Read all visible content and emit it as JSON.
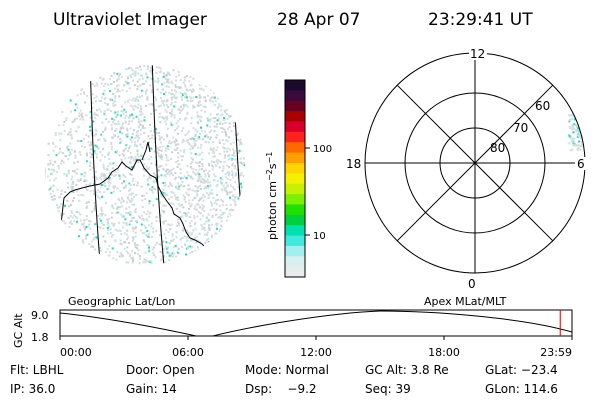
{
  "header": {
    "instrument": "Ultraviolet Imager",
    "date": "28 Apr 07",
    "time": "23:29:41 UT"
  },
  "colorbar": {
    "label_base": "photon cm",
    "label_exp1": "−2",
    "label_mid": "s",
    "label_exp2": "−1",
    "ticks": [
      "100",
      "10"
    ],
    "colors": [
      "#1a0a2e",
      "#3a0a3e",
      "#6a0020",
      "#a80000",
      "#d8002a",
      "#ff2020",
      "#ff6a00",
      "#ffa000",
      "#ffd400",
      "#f4f000",
      "#c8f000",
      "#7cf000",
      "#20e000",
      "#00d040",
      "#00e0b0",
      "#40e8e0",
      "#a0f0f0",
      "#d8f0f0",
      "#e8ecec"
    ]
  },
  "geo_panel": {
    "label": "Geographic Lat/Lon",
    "speckle_colors": [
      "#d8dcdc",
      "#c8d0d0",
      "#b8e8e8",
      "#20d8c8",
      "#40e0d0"
    ]
  },
  "polar_panel": {
    "label": "Apex MLat/MLT",
    "mlt_labels": {
      "top": "12",
      "left": "18",
      "right": "6",
      "bottom": "0"
    },
    "mlat_labels": [
      "60",
      "70",
      "80"
    ]
  },
  "timeline": {
    "axis_label": "GC Alt",
    "y_ticks": [
      "9.0",
      "1.8"
    ],
    "x_ticks": [
      "00:00",
      "06:00",
      "12:00",
      "18:00",
      "23:59"
    ],
    "current_fraction": 0.977,
    "marker_color": "#cc0000"
  },
  "info": {
    "row1": [
      "Flt: LBHL",
      "Door: Open",
      "Mode: Normal",
      "GC Alt: 3.8 Re",
      "GLat: −23.4"
    ],
    "row2": [
      "IP: 36.0",
      "Gain: 14",
      "Dsp:    −9.2",
      "Seq: 39",
      "GLon: 114.6"
    ]
  }
}
